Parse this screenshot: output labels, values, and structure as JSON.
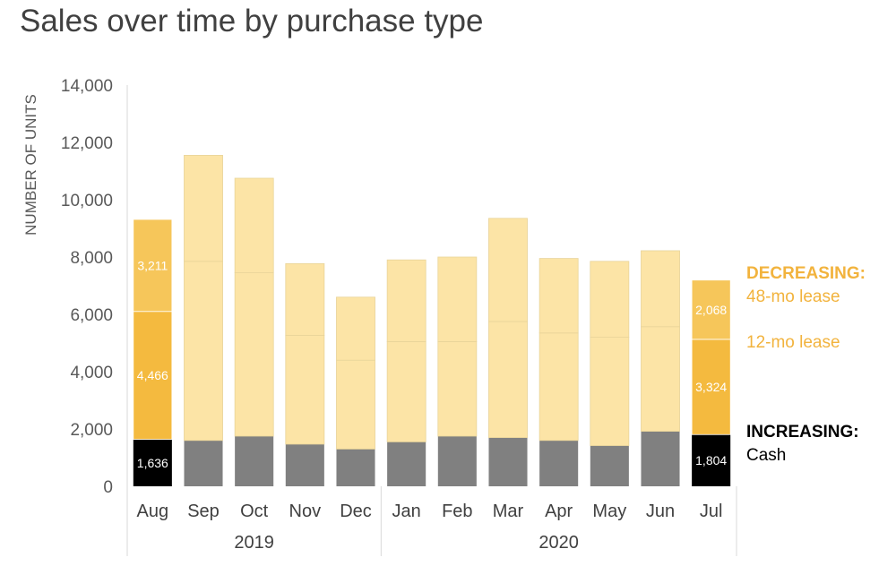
{
  "title": "Sales over time by purchase type",
  "colors": {
    "cash_highlight": "#000000",
    "cash_muted": "#808080",
    "lease12_highlight": "#F4BA3F",
    "lease48_highlight": "#F6C65A",
    "lease_muted": "#FCE4A6",
    "axis": "#D9D9D9",
    "annotation_orange": "#F2B33D"
  },
  "chart_data": {
    "type": "bar",
    "stacked": true,
    "ylabel": "NUMBER OF UNITS",
    "ylim": [
      0,
      14000
    ],
    "yticks": [
      "0",
      "2,000",
      "4,000",
      "6,000",
      "8,000",
      "10,000",
      "12,000",
      "14,000"
    ],
    "categories": [
      "Aug",
      "Sep",
      "Oct",
      "Nov",
      "Dec",
      "Jan",
      "Feb",
      "Mar",
      "Apr",
      "May",
      "Jun",
      "Jul"
    ],
    "groups": [
      {
        "label": "2019",
        "categories": [
          "Aug",
          "Sep",
          "Oct",
          "Nov",
          "Dec"
        ]
      },
      {
        "label": "2020",
        "categories": [
          "Jan",
          "Feb",
          "Mar",
          "Apr",
          "May",
          "Jun",
          "Jul"
        ]
      }
    ],
    "series": [
      {
        "name": "Cash",
        "values": [
          1636,
          1600,
          1750,
          1470,
          1300,
          1550,
          1750,
          1700,
          1600,
          1420,
          1920,
          1804
        ]
      },
      {
        "name": "12-mo lease",
        "values": [
          4466,
          6250,
          5700,
          3800,
          3100,
          3500,
          3300,
          4050,
          3750,
          3780,
          3650,
          3324
        ]
      },
      {
        "name": "48-mo lease",
        "values": [
          3211,
          3700,
          3300,
          2500,
          2200,
          2850,
          2950,
          3600,
          2600,
          2650,
          2650,
          2068
        ]
      }
    ],
    "highlighted_categories": [
      "Aug",
      "Jul"
    ],
    "data_labels": [
      {
        "category": "Aug",
        "series": "Cash",
        "text": "1,636"
      },
      {
        "category": "Aug",
        "series": "12-mo lease",
        "text": "4,466"
      },
      {
        "category": "Aug",
        "series": "48-mo lease",
        "text": "3,211"
      },
      {
        "category": "Jul",
        "series": "Cash",
        "text": "1,804"
      },
      {
        "category": "Jul",
        "series": "12-mo lease",
        "text": "3,324"
      },
      {
        "category": "Jul",
        "series": "48-mo lease",
        "text": "2,068"
      }
    ],
    "grid": false,
    "legend_placement": "right (direct labels)"
  },
  "annotations": {
    "decreasing": "DECREASING:",
    "lease48": "48-mo lease",
    "lease12": "12-mo lease",
    "increasing": "INCREASING:",
    "cash": "Cash"
  }
}
